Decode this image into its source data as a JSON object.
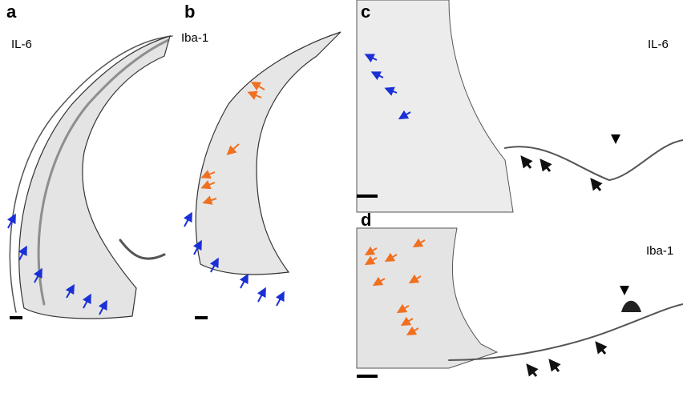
{
  "panels": [
    {
      "letter": "a",
      "stain": "IL-6"
    },
    {
      "letter": "b",
      "stain": "Iba-1"
    },
    {
      "letter": "c",
      "stain": "IL-6"
    },
    {
      "letter": "d",
      "stain": "Iba-1"
    }
  ]
}
